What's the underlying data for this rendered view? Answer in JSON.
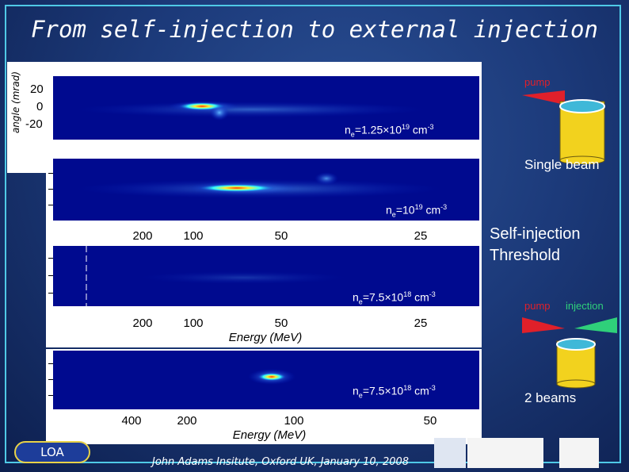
{
  "title": "From self-injection to external injection",
  "y_axis_label": "angle (mrad)",
  "y_ticks": [
    "20",
    "0",
    "-20"
  ],
  "panels": [
    {
      "density_prefix": "n",
      "density_sub": "e",
      "density_eq": "=1.25×10",
      "density_exp": "19",
      "density_unit": " cm",
      "density_unit_exp": "-3"
    },
    {
      "density_prefix": "n",
      "density_sub": "e",
      "density_eq": "=10",
      "density_exp": "19",
      "density_unit": " cm",
      "density_unit_exp": "-3",
      "x_ticks": [
        "200",
        "100",
        "50",
        "25"
      ]
    },
    {
      "density_prefix": "n",
      "density_sub": "e",
      "density_eq": "=7.5×10",
      "density_exp": "18",
      "density_unit": " cm",
      "density_unit_exp": "-3",
      "x_ticks": [
        "200",
        "100",
        "50",
        "25"
      ],
      "x_label": "Energy (MeV)"
    },
    {
      "density_prefix": "n",
      "density_sub": "e",
      "density_eq": "=7.5×10",
      "density_exp": "18",
      "density_unit": " cm",
      "density_unit_exp": "-3",
      "x_ticks": [
        "400",
        "200",
        "100",
        "50"
      ],
      "x_label": "Energy (MeV)"
    }
  ],
  "right": {
    "pump_label_1": "pump",
    "single_beam": "Single beam",
    "self_injection_line1": "Self-injection",
    "self_injection_line2": "Threshold",
    "pump_label_2": "pump",
    "injection_label": "injection",
    "two_beams": "2 beams"
  },
  "colors": {
    "pump": "#e0202a",
    "injection": "#2fd07a",
    "cylinder": "#f2d21e",
    "cylinder_top": "#3fb8d8"
  },
  "footer": {
    "loa": "LOA",
    "text": "John Adams Insitute, Oxford UK, January 10, 2008"
  }
}
